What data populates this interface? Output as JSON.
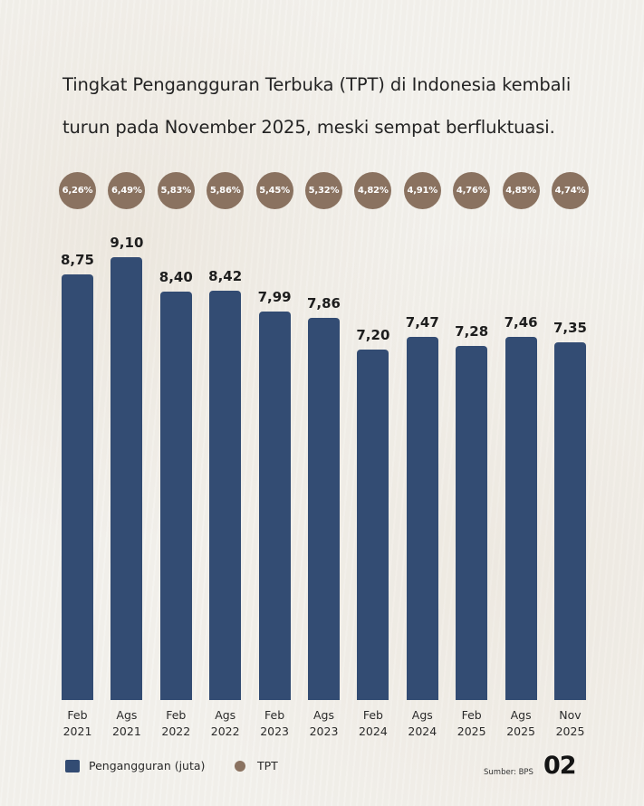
{
  "title_lines": [
    "Tingkat Pengangguran Terbuka (TPT) di Indonesia kembali",
    "turun pada November 2025, meski sempat berfluktuasi."
  ],
  "colors": {
    "bar": "#334c73",
    "bubble": "#8a7260"
  },
  "chart_data": {
    "type": "bar",
    "title": "Tingkat Pengangguran Terbuka (TPT) di Indonesia kembali turun pada November 2025, meski sempat berfluktuasi.",
    "categories": [
      "Feb 2021",
      "Ags 2021",
      "Feb 2022",
      "Ags 2022",
      "Feb 2023",
      "Ags 2023",
      "Feb 2024",
      "Ags 2024",
      "Feb 2025",
      "Ags 2025",
      "Nov 2025"
    ],
    "series": [
      {
        "name": "Pengangguran (juta)",
        "type": "bar",
        "values": [
          8.75,
          9.1,
          8.4,
          8.42,
          7.99,
          7.86,
          7.2,
          7.47,
          7.28,
          7.46,
          7.35
        ],
        "labels": [
          "8,75",
          "9,10",
          "8,40",
          "8,42",
          "7,99",
          "7,86",
          "7,20",
          "7,47",
          "7,28",
          "7,46",
          "7,35"
        ]
      },
      {
        "name": "TPT",
        "type": "bubble-label",
        "values": [
          6.26,
          6.49,
          5.83,
          5.86,
          5.45,
          5.32,
          4.82,
          4.91,
          4.76,
          4.85,
          4.74
        ],
        "labels": [
          "6,26%",
          "6,49%",
          "5,83%",
          "5,86%",
          "5,45%",
          "5,32%",
          "4,82%",
          "4,91%",
          "4,76%",
          "4,85%",
          "4,74%"
        ]
      }
    ],
    "xlabel": "",
    "ylabel": "",
    "ylim": [
      0,
      9.1
    ],
    "grid": false,
    "legend_position": "bottom-left"
  },
  "axis_labels": [
    {
      "top": "Feb",
      "bottom": "2021"
    },
    {
      "top": "Ags",
      "bottom": "2021"
    },
    {
      "top": "Feb",
      "bottom": "2022"
    },
    {
      "top": "Ags",
      "bottom": "2022"
    },
    {
      "top": "Feb",
      "bottom": "2023"
    },
    {
      "top": "Ags",
      "bottom": "2023"
    },
    {
      "top": "Feb",
      "bottom": "2024"
    },
    {
      "top": "Ags",
      "bottom": "2024"
    },
    {
      "top": "Feb",
      "bottom": "2025"
    },
    {
      "top": "Ags",
      "bottom": "2025"
    },
    {
      "top": "Nov",
      "bottom": "2025"
    }
  ],
  "legend": {
    "bar_label": "Pengangguran (juta)",
    "dot_label": "TPT"
  },
  "footer": {
    "source": "Sumber: BPS",
    "page_number": "02"
  }
}
